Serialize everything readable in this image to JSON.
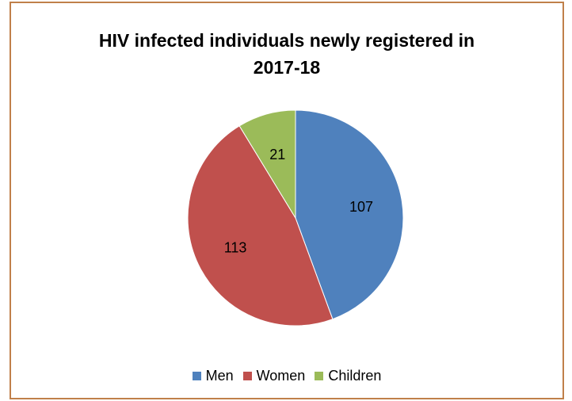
{
  "chart_data": {
    "type": "pie",
    "title_lines": [
      "HIV infected individuals  newly registered in",
      "2017-18"
    ],
    "categories": [
      "Men",
      "Women",
      "Children"
    ],
    "values": [
      107,
      113,
      21
    ],
    "colors": [
      "#4f81bd",
      "#c0504d",
      "#9bbb59"
    ],
    "start_angle_deg": -90,
    "direction": "clockwise",
    "data_labels": [
      "107",
      "113",
      "21"
    ],
    "legend_position": "bottom"
  }
}
